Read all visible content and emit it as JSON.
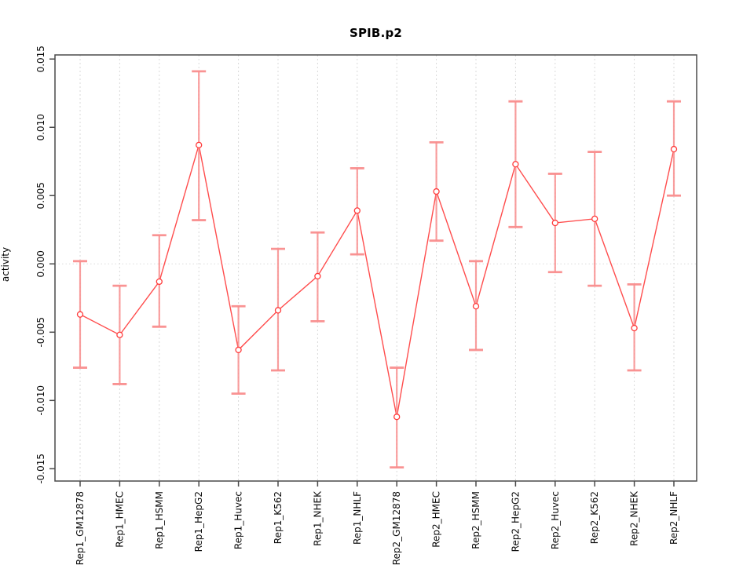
{
  "title": "SPIB.p2",
  "chart_data": {
    "type": "line",
    "subtype": "points-with-error-bars",
    "title": "SPIB.p2",
    "xlabel": "",
    "ylabel": "activity",
    "categories": [
      "Rep1_GM12878",
      "Rep1_HMEC",
      "Rep1_HSMM",
      "Rep1_HepG2",
      "Rep1_Huvec",
      "Rep1_K562",
      "Rep1_NHEK",
      "Rep1_NHLF",
      "Rep2_GM12878",
      "Rep2_HMEC",
      "Rep2_HSMM",
      "Rep2_HepG2",
      "Rep2_Huvec",
      "Rep2_K562",
      "Rep2_NHEK",
      "Rep2_NHLF"
    ],
    "series": [
      {
        "name": "activity",
        "values": [
          -0.0037,
          -0.0052,
          -0.0013,
          0.0087,
          -0.0063,
          -0.0034,
          -0.0009,
          0.0039,
          -0.0112,
          0.0053,
          -0.0031,
          0.0073,
          0.003,
          0.0033,
          -0.0047,
          0.0084
        ],
        "error_high": [
          0.0002,
          -0.0016,
          0.0021,
          0.0141,
          -0.0031,
          0.0011,
          0.0023,
          0.007,
          -0.0076,
          0.0089,
          0.0002,
          0.0119,
          0.0066,
          0.0082,
          -0.0015,
          0.0119
        ],
        "error_low": [
          -0.0076,
          -0.0088,
          -0.0046,
          0.0032,
          -0.0095,
          -0.0078,
          -0.0042,
          0.0007,
          -0.0149,
          0.0017,
          -0.0063,
          0.0027,
          -0.0006,
          -0.0016,
          -0.0078,
          0.005
        ]
      }
    ],
    "ylim": [
      -0.0159,
      0.0153
    ],
    "yticks": [
      -0.015,
      -0.01,
      -0.005,
      0.0,
      0.005,
      0.01,
      0.015
    ],
    "ytick_labels": [
      "-0.015",
      "-0.010",
      "-0.005",
      "0.000",
      "0.005",
      "0.010",
      "0.015"
    ],
    "grid": "vertical dashed gridline at each category; dotted horizontal line at y=0",
    "legend": "none",
    "colors": {
      "series_line": "#ff4d4d",
      "marker_stroke": "#ff3b3b",
      "error_bar": "#f98e8e",
      "grid": "#d9d9d9",
      "zero_line": "#dcdcdc",
      "axis": "#4a4a4a"
    }
  }
}
